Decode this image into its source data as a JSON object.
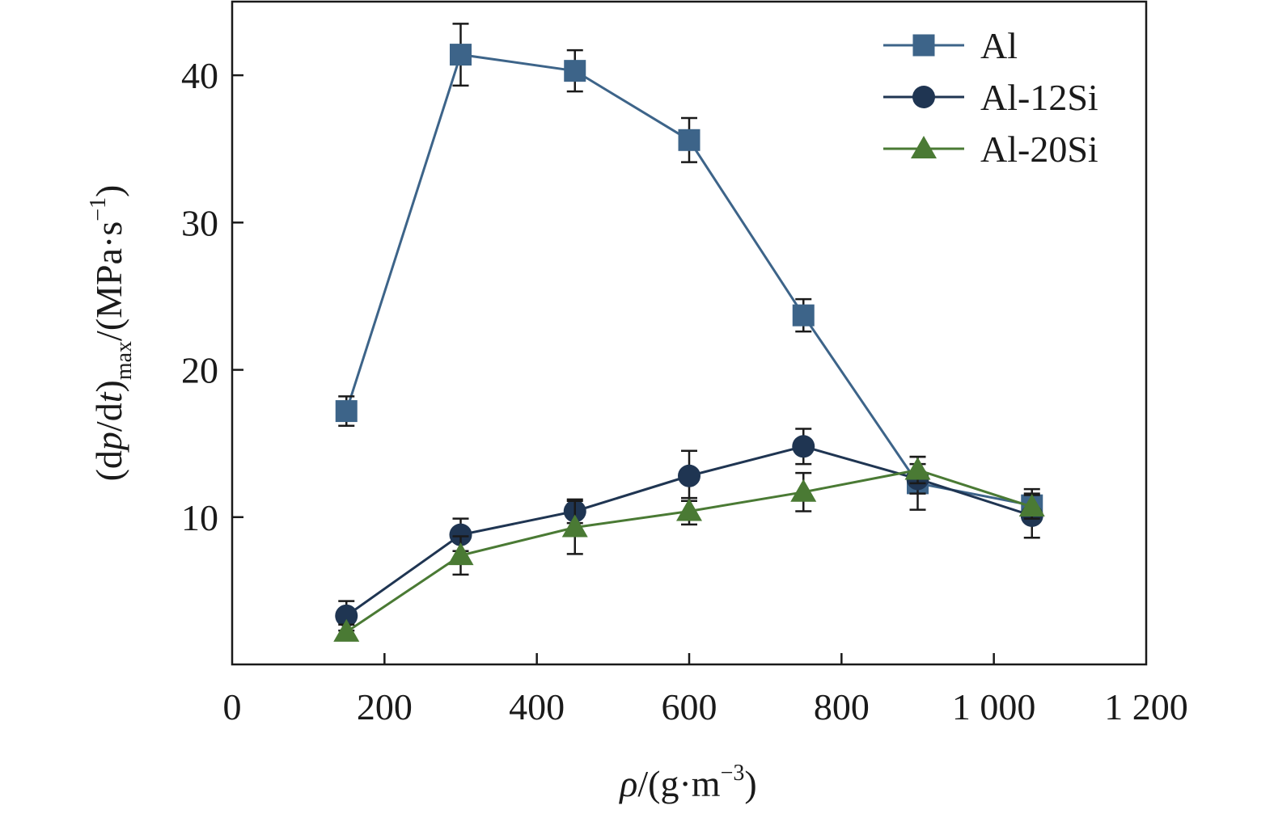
{
  "chart_data": {
    "type": "line",
    "xlabel_parts": [
      "ρ",
      "/(g·m",
      "−3",
      ")"
    ],
    "ylabel_parts": [
      "(d",
      "p",
      "/d",
      "t",
      ")",
      "max",
      "/(MPa·s",
      "−1",
      ")"
    ],
    "xlim": [
      0,
      1200
    ],
    "ylim": [
      0,
      45
    ],
    "x_ticks": [
      0,
      200,
      400,
      600,
      800,
      1000,
      1200
    ],
    "x_tick_labels": [
      "0",
      "200",
      "400",
      "600",
      "800",
      "1 000",
      "1 200"
    ],
    "y_ticks": [
      10,
      20,
      30,
      40
    ],
    "y_tick_labels": [
      "10",
      "20",
      "30",
      "40"
    ],
    "grid": false,
    "legend_position": "top-right",
    "x": [
      150,
      300,
      450,
      600,
      750,
      900,
      1050
    ],
    "series": [
      {
        "name": "Al",
        "marker": "square",
        "color": "#3d6489",
        "values": [
          17.2,
          41.4,
          40.3,
          35.6,
          23.7,
          12.3,
          10.8
        ],
        "errors": [
          1.0,
          2.1,
          1.4,
          1.5,
          1.1,
          1.8,
          1.1
        ]
      },
      {
        "name": "Al-12Si",
        "marker": "circle",
        "color": "#1f3552",
        "values": [
          3.3,
          8.8,
          10.4,
          12.8,
          14.8,
          12.6,
          10.1
        ],
        "errors": [
          1.0,
          1.1,
          0.8,
          1.7,
          1.2,
          1.0,
          1.5
        ]
      },
      {
        "name": "Al-20Si",
        "marker": "triangle",
        "color": "#4a7a34",
        "values": [
          2.2,
          7.4,
          9.3,
          10.4,
          11.7,
          13.2,
          10.7
        ],
        "errors": [
          0.5,
          1.3,
          1.8,
          0.9,
          1.3,
          0.9,
          0.8
        ]
      }
    ]
  }
}
